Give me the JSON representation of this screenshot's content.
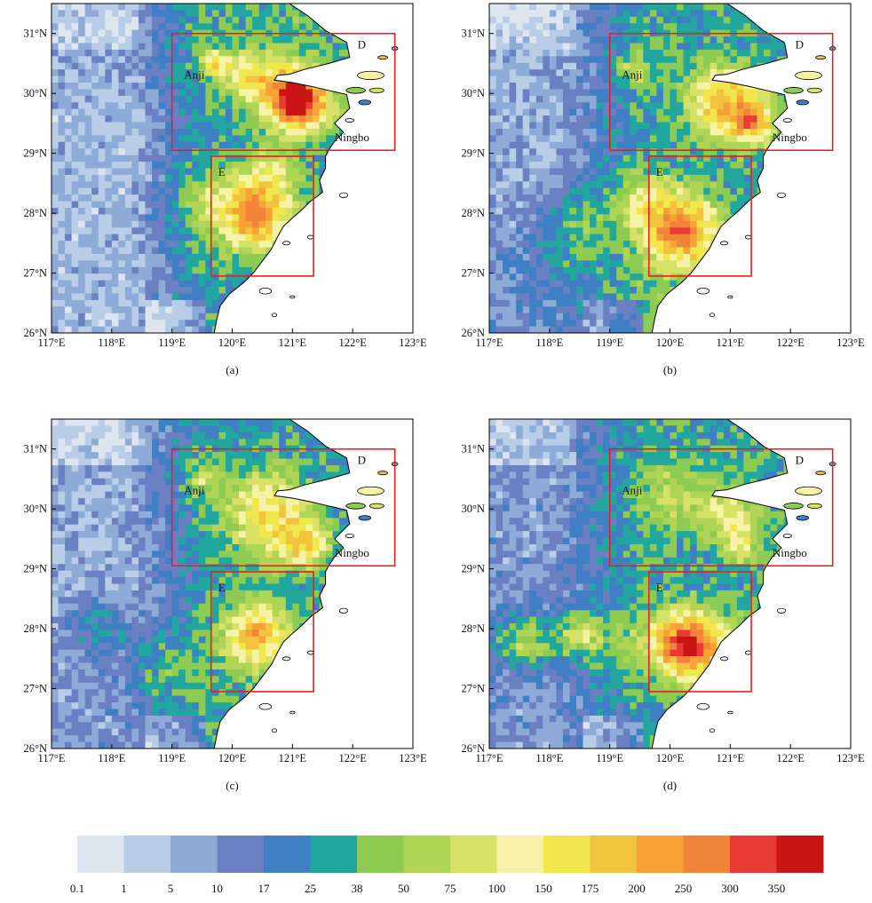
{
  "x_ticks": [
    "117°E",
    "118°E",
    "119°E",
    "120°E",
    "121°E",
    "122°E",
    "123°E"
  ],
  "y_ticks": [
    "26°N",
    "27°N",
    "28°N",
    "29°N",
    "30°N",
    "31°N"
  ],
  "panels": [
    {
      "id": "a",
      "caption": "(a)",
      "variant": 0
    },
    {
      "id": "b",
      "caption": "(b)",
      "variant": 1
    },
    {
      "id": "c",
      "caption": "(c)",
      "variant": 2
    },
    {
      "id": "d",
      "caption": "(d)",
      "variant": 3
    }
  ],
  "regions": {
    "D": {
      "label": "D",
      "lon": [
        119.0,
        122.7
      ],
      "lat": [
        29.05,
        31.0
      ]
    },
    "E": {
      "label": "E",
      "lon": [
        119.65,
        121.35
      ],
      "lat": [
        26.95,
        28.95
      ]
    }
  },
  "places": [
    {
      "name": "Anji",
      "lon": 119.2,
      "lat": 30.25
    },
    {
      "name": "Ningbo",
      "lon": 121.7,
      "lat": 29.2
    }
  ],
  "colorbar": {
    "labels": [
      "0.1",
      "1",
      "5",
      "10",
      "17",
      "25",
      "38",
      "50",
      "75",
      "100",
      "150",
      "175",
      "200",
      "250",
      "300",
      "350"
    ],
    "colors": [
      "#dde6ee",
      "#b9cde6",
      "#8eaad6",
      "#6a80c2",
      "#3f7fc4",
      "#22a79f",
      "#8ecb52",
      "#b0d456",
      "#d7e167",
      "#f7f3a6",
      "#f1e64c",
      "#f2c33c",
      "#f6a237",
      "#f0843a",
      "#e83b33",
      "#c91513"
    ]
  }
}
